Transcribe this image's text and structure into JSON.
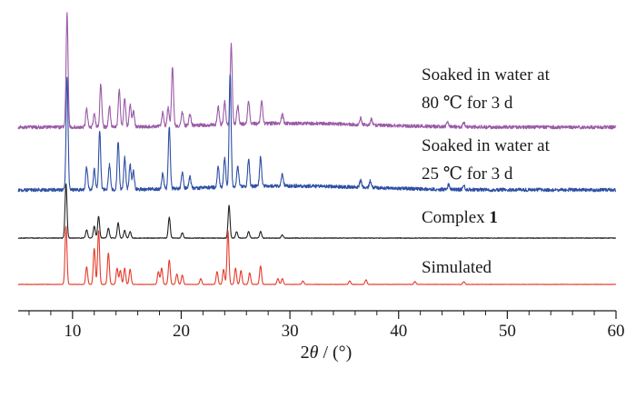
{
  "chart_data": {
    "type": "line",
    "xlabel": "2θ / (°)",
    "xlim": [
      5,
      60
    ],
    "xticks": [
      10,
      20,
      30,
      40,
      50,
      60
    ],
    "yaxis_visible": false,
    "legend": "inline labels at right of each trace",
    "series": [
      {
        "name": "Soaked in water at 80 ℃ for 3 d",
        "label_lines": [
          "Soaked in water at",
          "80 ℃ for 3 d"
        ],
        "color": "#9b5ba7",
        "noise": 0.85,
        "peaks": [
          [
            9.5,
            100
          ],
          [
            11.3,
            16
          ],
          [
            12.0,
            12
          ],
          [
            12.6,
            38
          ],
          [
            13.4,
            18
          ],
          [
            14.3,
            33
          ],
          [
            14.8,
            25
          ],
          [
            15.3,
            20
          ],
          [
            15.6,
            14
          ],
          [
            18.3,
            12
          ],
          [
            18.8,
            16
          ],
          [
            19.2,
            52
          ],
          [
            20.1,
            12
          ],
          [
            20.8,
            10
          ],
          [
            23.4,
            16
          ],
          [
            24.0,
            20
          ],
          [
            24.6,
            70
          ],
          [
            25.2,
            16
          ],
          [
            26.2,
            20
          ],
          [
            27.4,
            20
          ],
          [
            29.3,
            8
          ],
          [
            36.5,
            6
          ],
          [
            37.5,
            5
          ],
          [
            44.5,
            4
          ],
          [
            46.0,
            4
          ]
        ]
      },
      {
        "name": "Soaked in water at 25 ℃ for 3 d",
        "label_lines": [
          "Soaked in water at",
          "25 ℃ for 3 d"
        ],
        "color": "#2e4fa4",
        "noise": 0.85,
        "peaks": [
          [
            9.5,
            100
          ],
          [
            11.3,
            20
          ],
          [
            12.0,
            18
          ],
          [
            12.5,
            52
          ],
          [
            13.4,
            22
          ],
          [
            14.2,
            42
          ],
          [
            14.8,
            28
          ],
          [
            15.3,
            22
          ],
          [
            15.6,
            16
          ],
          [
            18.3,
            14
          ],
          [
            18.9,
            55
          ],
          [
            20.1,
            14
          ],
          [
            20.8,
            10
          ],
          [
            23.4,
            18
          ],
          [
            24.0,
            26
          ],
          [
            24.5,
            100
          ],
          [
            25.2,
            18
          ],
          [
            26.2,
            24
          ],
          [
            27.3,
            26
          ],
          [
            29.3,
            10
          ],
          [
            36.5,
            6
          ],
          [
            37.4,
            6
          ],
          [
            44.6,
            4
          ],
          [
            46.0,
            4
          ]
        ]
      },
      {
        "name": "Complex 1",
        "label_prefix": "Complex ",
        "label_bold": "1",
        "color": "#222222",
        "noise": 0.35,
        "peaks": [
          [
            9.4,
            100
          ],
          [
            11.3,
            15
          ],
          [
            12.0,
            22
          ],
          [
            12.4,
            40
          ],
          [
            13.3,
            18
          ],
          [
            14.2,
            28
          ],
          [
            14.8,
            14
          ],
          [
            15.3,
            12
          ],
          [
            18.9,
            38
          ],
          [
            20.1,
            10
          ],
          [
            24.4,
            60
          ],
          [
            25.1,
            12
          ],
          [
            26.2,
            12
          ],
          [
            27.3,
            12
          ],
          [
            29.3,
            6
          ]
        ]
      },
      {
        "name": "Simulated",
        "color": "#e53b2b",
        "noise": 0.18,
        "peaks": [
          [
            9.4,
            100
          ],
          [
            11.3,
            30
          ],
          [
            12.0,
            62
          ],
          [
            12.4,
            92
          ],
          [
            13.3,
            54
          ],
          [
            14.1,
            28
          ],
          [
            14.4,
            24
          ],
          [
            14.8,
            28
          ],
          [
            15.3,
            26
          ],
          [
            17.9,
            22
          ],
          [
            18.2,
            28
          ],
          [
            18.9,
            42
          ],
          [
            19.6,
            18
          ],
          [
            20.1,
            16
          ],
          [
            21.8,
            10
          ],
          [
            23.3,
            22
          ],
          [
            23.9,
            26
          ],
          [
            24.3,
            92
          ],
          [
            25.0,
            28
          ],
          [
            25.5,
            24
          ],
          [
            26.3,
            20
          ],
          [
            27.3,
            32
          ],
          [
            28.9,
            10
          ],
          [
            29.3,
            10
          ],
          [
            31.2,
            6
          ],
          [
            35.5,
            6
          ],
          [
            37.0,
            8
          ],
          [
            41.5,
            5
          ],
          [
            46.0,
            5
          ]
        ]
      }
    ]
  }
}
